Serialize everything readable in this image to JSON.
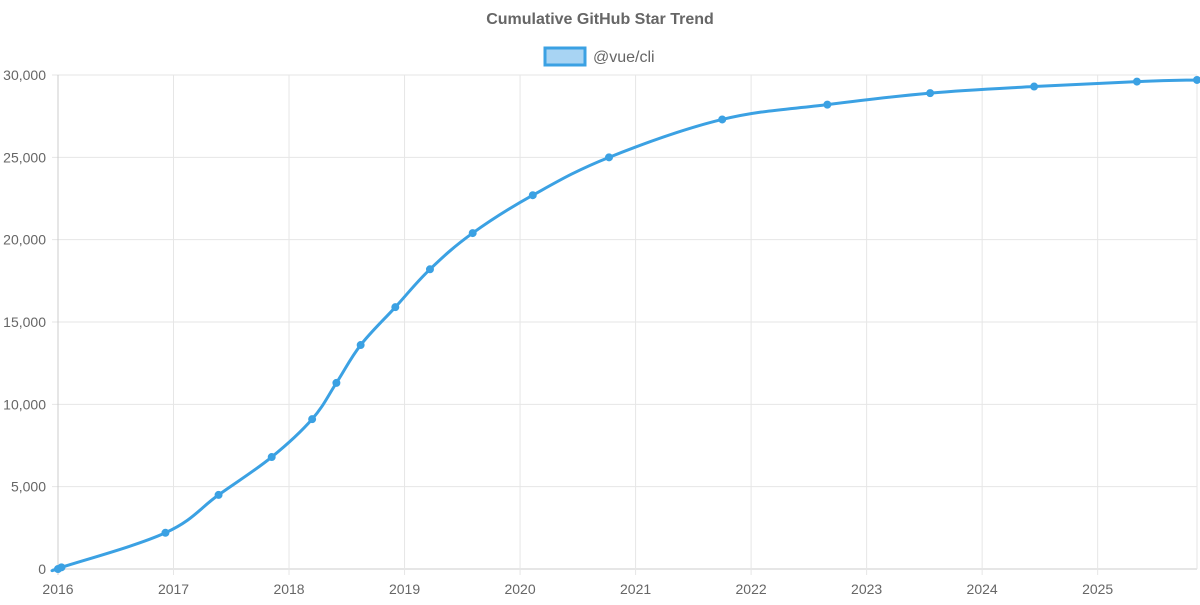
{
  "chart_data": {
    "type": "line",
    "title": "Cumulative GitHub Star Trend",
    "xlabel": "",
    "ylabel": "",
    "grid": true,
    "legend_position": "top-center",
    "colors": {
      "line": "#3ba1e3",
      "legend_fill": "#a8d4f3",
      "grid": "#e6e6e6",
      "axis": "#cccccc",
      "text": "#666666"
    },
    "x_ticks": [
      "2016",
      "2017",
      "2018",
      "2019",
      "2020",
      "2021",
      "2022",
      "2023",
      "2024",
      "2025"
    ],
    "y_ticks": [
      0,
      5000,
      10000,
      15000,
      20000,
      25000,
      30000
    ],
    "y_tick_labels": [
      "0",
      "5,000",
      "10,000",
      "15,000",
      "20,000",
      "25,000",
      "30,000"
    ],
    "xlim": [
      2016.0,
      2025.86
    ],
    "ylim": [
      0,
      30000
    ],
    "series": [
      {
        "name": "@vue/cli",
        "x": [
          2016.0,
          2016.03,
          2016.93,
          2017.39,
          2017.85,
          2018.2,
          2018.41,
          2018.62,
          2018.92,
          2019.22,
          2019.59,
          2020.11,
          2020.77,
          2021.75,
          2022.66,
          2023.55,
          2024.45,
          2025.34,
          2025.86
        ],
        "values": [
          0,
          100,
          2200,
          4500,
          6800,
          9100,
          11300,
          13600,
          15900,
          18200,
          20400,
          22700,
          25000,
          27300,
          28200,
          28900,
          29300,
          29600,
          29700
        ]
      }
    ]
  }
}
